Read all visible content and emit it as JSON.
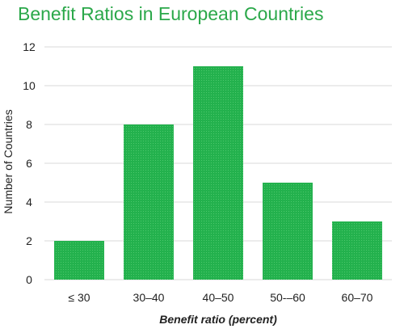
{
  "chart_data": {
    "type": "bar",
    "title": "Benefit Ratios in European Countries",
    "xlabel": "Benefit ratio (percent)",
    "ylabel": "Number of Countries",
    "categories": [
      "≤ 30",
      "30–40",
      "40–50",
      "50-–60",
      "60–70"
    ],
    "values": [
      2,
      8,
      11,
      5,
      3
    ],
    "ylim": [
      0,
      12
    ],
    "yticks": [
      0,
      2,
      4,
      6,
      8,
      10,
      12
    ],
    "grid": true,
    "bar_color": "#23b14d",
    "grid_color": "#d9d9d9"
  }
}
